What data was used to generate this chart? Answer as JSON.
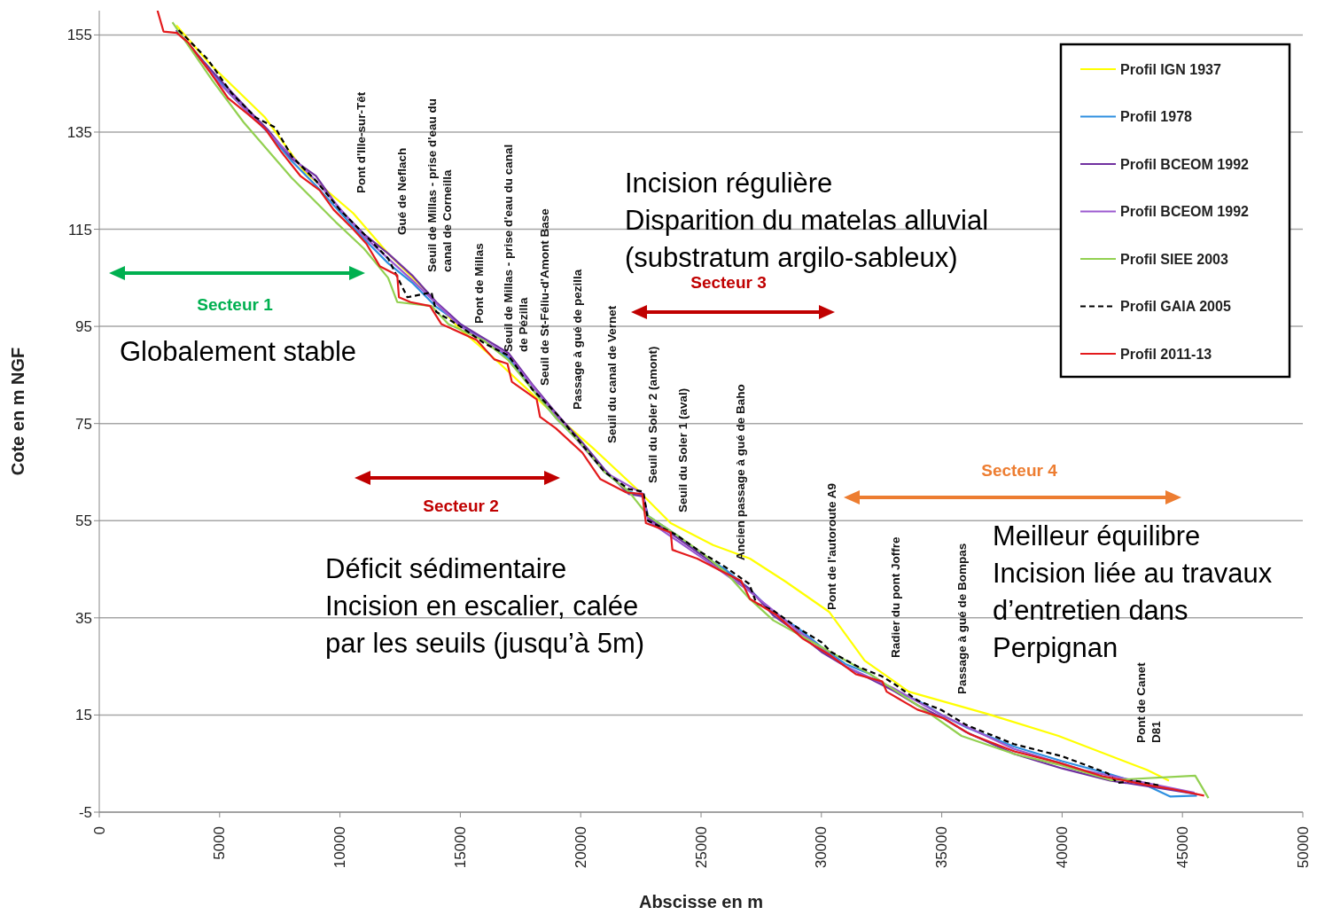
{
  "chart_data": {
    "type": "line",
    "xlabel": "Abscisse en m",
    "ylabel": "Cote en m NGF",
    "xlim": [
      0,
      50000
    ],
    "xticks": [
      0,
      5000,
      10000,
      15000,
      20000,
      25000,
      30000,
      35000,
      40000,
      45000,
      50000
    ],
    "ylim": [
      -5,
      160
    ],
    "yticks": [
      -5,
      15,
      35,
      55,
      75,
      95,
      115,
      135,
      155
    ],
    "grid": "y",
    "legend": "top right",
    "marker": "none",
    "series": [
      {
        "name": "Profil IGN 1937",
        "color": "#ffff00",
        "line_style": "solid",
        "x": [
          3200,
          4600,
          6890,
          8500,
          10550,
          12000,
          13480,
          14950,
          16500,
          18610,
          20500,
          22270,
          23740,
          25500,
          27030,
          28500,
          30330,
          31800,
          33630,
          36920,
          39850,
          43520,
          44440
        ],
        "values": [
          157,
          149,
          138,
          127,
          118.3,
          110,
          102.8,
          94.6,
          88,
          78.2,
          70,
          61.8,
          54.5,
          50,
          47.2,
          42.5,
          36.2,
          26.2,
          19.8,
          15.2,
          10.7,
          3.7,
          1.5
        ]
      },
      {
        "name": "Profil 1978",
        "color": "#2e8fe0",
        "line_style": "solid",
        "x": [
          3200,
          4600,
          5400,
          6200,
          7000,
          8000,
          9000,
          10000,
          11000,
          12000,
          13000,
          14000,
          15000,
          16000,
          17000,
          18000,
          19000,
          20000,
          21000,
          22000,
          22600,
          22800,
          24000,
          25000,
          26000,
          27000,
          28000,
          29000,
          30000,
          31000,
          32000,
          33000,
          34000,
          35000,
          36000,
          38000,
          40000,
          42000,
          43500,
          44500,
          45600
        ],
        "values": [
          156,
          148,
          143,
          139,
          135,
          129,
          124,
          118.5,
          113,
          108,
          104,
          99,
          95.5,
          92,
          88.5,
          82,
          76,
          71,
          65,
          61,
          60,
          56,
          52,
          48,
          45,
          41,
          36,
          33,
          29,
          25.5,
          23.5,
          20,
          18,
          15,
          12.5,
          8.5,
          5.5,
          2.8,
          0.5,
          -1.8,
          -1.6
        ]
      },
      {
        "name": "Profil BCEOM 1992",
        "color": "#7030a0",
        "line_style": "solid",
        "x": [
          3200,
          4600,
          6200,
          7000,
          8000,
          9000,
          10000,
          11000,
          12000,
          13000,
          14000,
          15000,
          16000,
          17000,
          18000,
          19000,
          20000,
          21000,
          22000,
          22600,
          22800,
          24000,
          25000,
          26000,
          27000,
          28000,
          29000,
          30000,
          31000,
          32000,
          33000,
          34000,
          35000,
          36000,
          38000,
          40000,
          42000,
          44000,
          45600
        ],
        "values": [
          156,
          148,
          139.5,
          135.5,
          129.5,
          126,
          119,
          114,
          110,
          105.5,
          100,
          95.5,
          92.5,
          89.5,
          83,
          77,
          71.5,
          65.5,
          60.5,
          60,
          55.5,
          51.5,
          48,
          44.5,
          41,
          35.5,
          32,
          28,
          25,
          22.5,
          20,
          17,
          14.5,
          11.5,
          7,
          4,
          1.5,
          0,
          -1.3
        ]
      },
      {
        "name": "Profil BCEOM 1992",
        "color": "#9b59d0",
        "line_style": "solid",
        "x": [
          3300,
          5000,
          7000,
          9000,
          11000,
          13000,
          15000,
          17000,
          19000,
          21000,
          22600,
          22800,
          25000,
          27000,
          29000,
          31000,
          33000,
          35000,
          38000,
          41000,
          44000,
          45500
        ],
        "values": [
          155.5,
          145,
          135,
          125,
          113.5,
          104.5,
          95,
          89,
          76.5,
          65,
          60.5,
          55,
          47.5,
          40.5,
          32.5,
          25,
          20.5,
          15,
          8,
          3.5,
          0.5,
          -1
        ]
      },
      {
        "name": "Profil SIEE 2003",
        "color": "#92d050",
        "line_style": "solid",
        "x": [
          3040,
          4690,
          6000,
          7990,
          9820,
          11000,
          12000,
          12380,
          13800,
          14500,
          16000,
          17000,
          18000,
          19000,
          20000,
          21000,
          22000,
          22800,
          24000,
          25000,
          26000,
          27000,
          28000,
          30000,
          32000,
          34000,
          35820,
          38000,
          39850,
          42050,
          45530,
          46080
        ],
        "values": [
          157.6,
          145.7,
          137,
          125.6,
          116.5,
          111,
          105,
          100,
          99.2,
          95.5,
          92,
          88,
          82,
          76,
          71,
          65,
          61,
          56,
          52,
          48.5,
          44.5,
          39,
          34.5,
          29,
          23.5,
          17,
          10.7,
          7,
          4.8,
          1.6,
          2.5,
          -2.1
        ]
      },
      {
        "name": "Profil GAIA 2005",
        "color": "#000000",
        "line_style": "dashed",
        "x": [
          3300,
          4500,
          5500,
          6500,
          7300,
          8000,
          9000,
          10000,
          11000,
          12000,
          12800,
          13800,
          14000,
          15000,
          16000,
          17000,
          18000,
          19000,
          20000,
          21000,
          22000,
          22600,
          22800,
          24000,
          25000,
          26000,
          27000,
          27300,
          28000,
          29000,
          30000,
          30400,
          31500,
          32500,
          33000,
          34000,
          35000,
          36000,
          38000,
          40000,
          41900,
          42300,
          43000,
          44000
        ],
        "values": [
          156,
          150,
          143,
          138,
          136,
          130,
          125,
          119,
          114,
          109,
          101,
          102,
          98,
          95,
          91.5,
          89,
          82,
          77,
          71,
          65,
          61.5,
          61,
          55,
          52,
          48.5,
          45.5,
          42,
          38,
          36.5,
          33,
          30,
          28,
          25,
          23,
          21.5,
          18,
          16,
          13,
          9,
          6.5,
          3,
          1,
          1.5,
          0.5
        ]
      },
      {
        "name": "Profil 2011-13",
        "color": "#e31a1c",
        "line_style": "solid",
        "x": [
          2420,
          2670,
          3220,
          3700,
          4580,
          5350,
          6150,
          6890,
          7550,
          8350,
          9160,
          9740,
          10550,
          11100,
          11650,
          12380,
          12450,
          12930,
          13740,
          14210,
          15680,
          16410,
          16960,
          17140,
          18170,
          18310,
          18970,
          20070,
          20810,
          21900,
          22560,
          22710,
          23740,
          23810,
          24840,
          25930,
          26670,
          27030,
          28130,
          29230,
          30330,
          31430,
          32530,
          32710,
          33990,
          35090,
          36190,
          38020,
          39850,
          41680,
          43520,
          44620,
          45900
        ],
        "values": [
          160,
          155.7,
          155.4,
          153.4,
          147.5,
          142,
          138.8,
          135.7,
          131,
          126,
          123,
          119,
          115,
          112,
          107.4,
          105.5,
          101,
          100,
          99.2,
          95.5,
          92.2,
          88.2,
          87.3,
          83.6,
          80,
          76.4,
          74,
          69,
          63.6,
          60.8,
          60.5,
          54.5,
          52.6,
          49,
          47.2,
          44.4,
          42.6,
          38.9,
          35.6,
          30.7,
          27.4,
          23.4,
          21.9,
          19.8,
          16.1,
          14.3,
          11,
          7.5,
          5.2,
          2.4,
          0.6,
          -0.3,
          -1.6
        ]
      }
    ],
    "annotations": [
      "Pont d'Ille-sur-Têt",
      "Gué de Neflach",
      "Seuil de Millas - prise d'eau du\ncanal de Corneilla",
      "Pont de Millas",
      "Seuil de Millas - prise d'eau du canal\nde Pézilla",
      "Seuil de St-Féliu-d'Amont Base",
      "Passage à gué de pezilla",
      "Seuil du canal de Vernet",
      "Seuil du Soler 2 (amont)",
      "Seuil du Soler 1 (aval)",
      "Ancien passage à gué de Baho",
      "Pont de l'autoroute A9",
      "Radier du pont Joffre",
      "Passage à gué de Bompas",
      "Pont de Canet\nD81",
      "Secteur 1",
      "Secteur 2",
      "Secteur 3",
      "Secteur 4",
      "Globalement stable",
      "Incision régulière\nDisparition du matelas alluvial\n(substratum argilo-sableux)",
      "Déficit sédimentaire\nIncision en escalier, calée\npar les seuils (jusqu’à 5m)",
      "Meilleur équilibre\nIncision liée au travaux\nd’entretien dans\nPerpignan"
    ]
  }
}
